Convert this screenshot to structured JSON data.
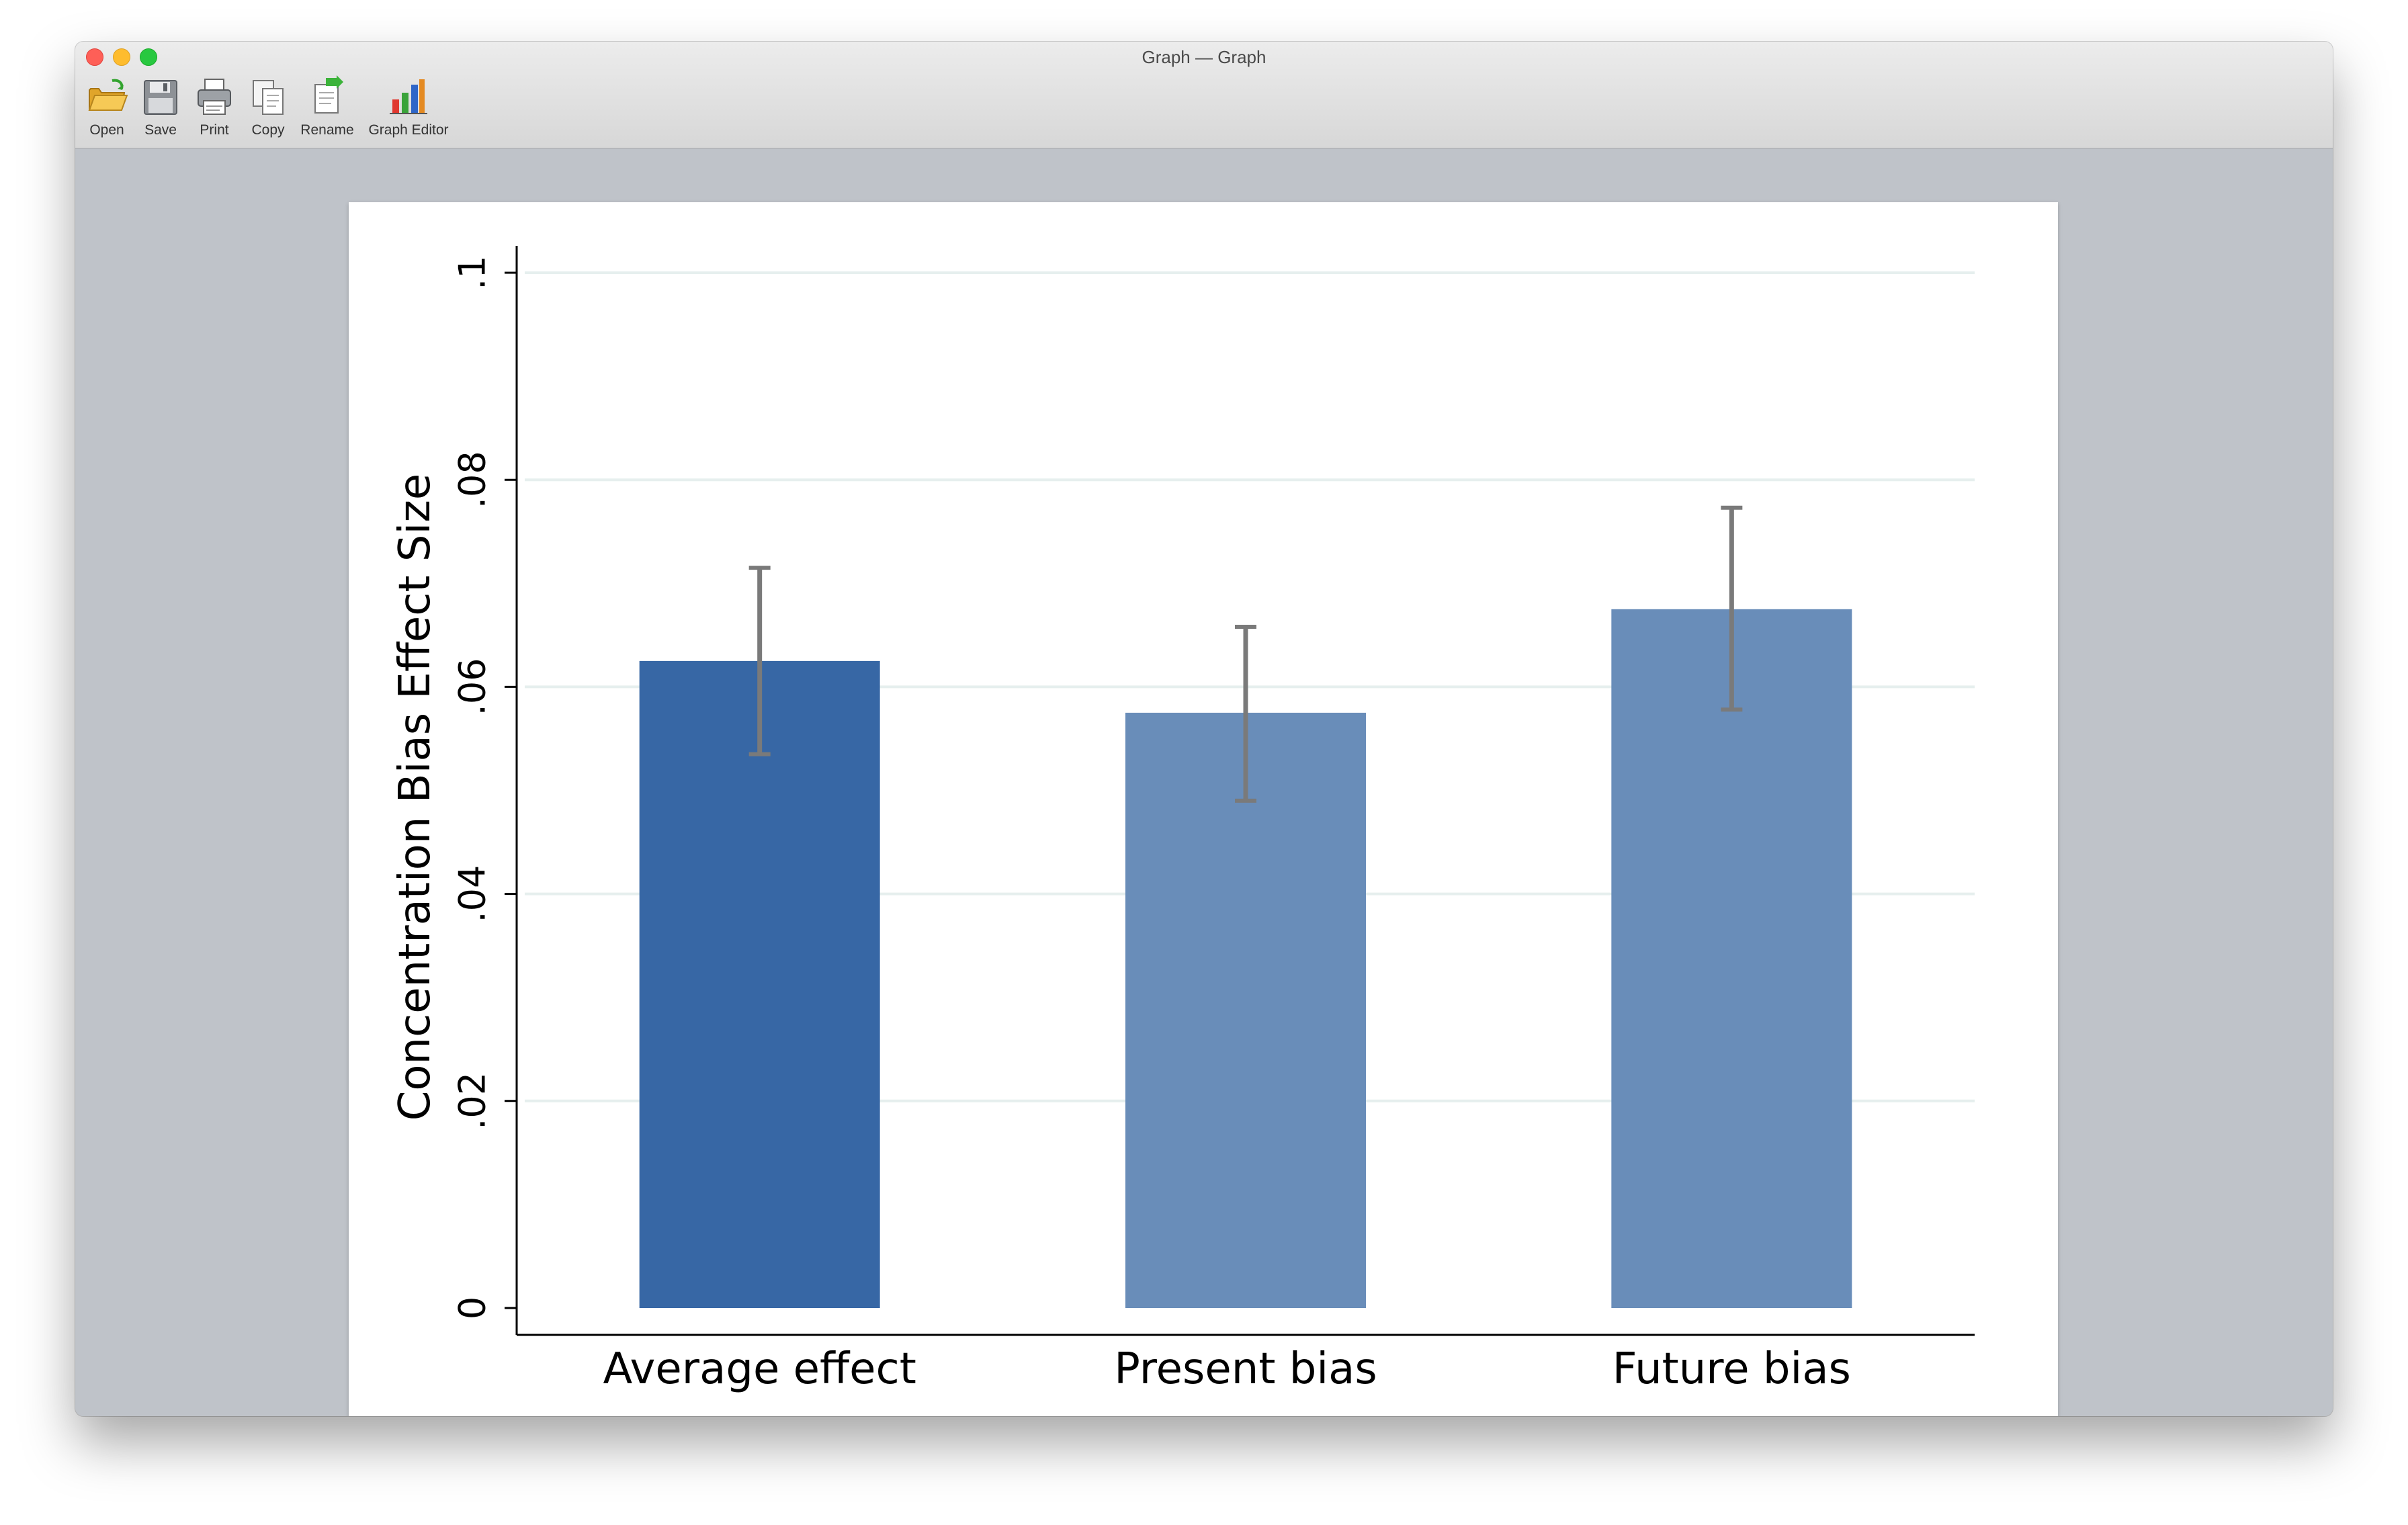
{
  "window": {
    "title": "Graph — Graph"
  },
  "toolbar": {
    "items": [
      {
        "label": "Open",
        "icon": "folder-open-icon"
      },
      {
        "label": "Save",
        "icon": "floppy-disk-icon"
      },
      {
        "label": "Print",
        "icon": "printer-icon"
      },
      {
        "label": "Copy",
        "icon": "copy-icon"
      },
      {
        "label": "Rename",
        "icon": "rename-icon"
      },
      {
        "label": "Graph Editor",
        "icon": "graph-editor-icon"
      }
    ]
  },
  "colors": {
    "bar_primary": "#3767a5",
    "bar_secondary": "#698db9",
    "error_bar": "#7a7a7a",
    "gridline": "#e6efee"
  },
  "chart_data": {
    "type": "bar",
    "categories": [
      "Average effect",
      "Present bias",
      "Future bias"
    ],
    "values": [
      0.0625,
      0.0575,
      0.0675
    ],
    "error_low": [
      0.0535,
      0.049,
      0.0578
    ],
    "error_high": [
      0.0715,
      0.0658,
      0.0773
    ],
    "ylabel": "Concentration Bias Effect Size",
    "ylim": [
      0,
      0.1
    ],
    "yticks": [
      0,
      0.02,
      0.04,
      0.06,
      0.08,
      0.1
    ],
    "ytick_labels": [
      "0",
      ".02",
      ".04",
      ".06",
      ".08",
      ".1"
    ],
    "grid": true
  }
}
